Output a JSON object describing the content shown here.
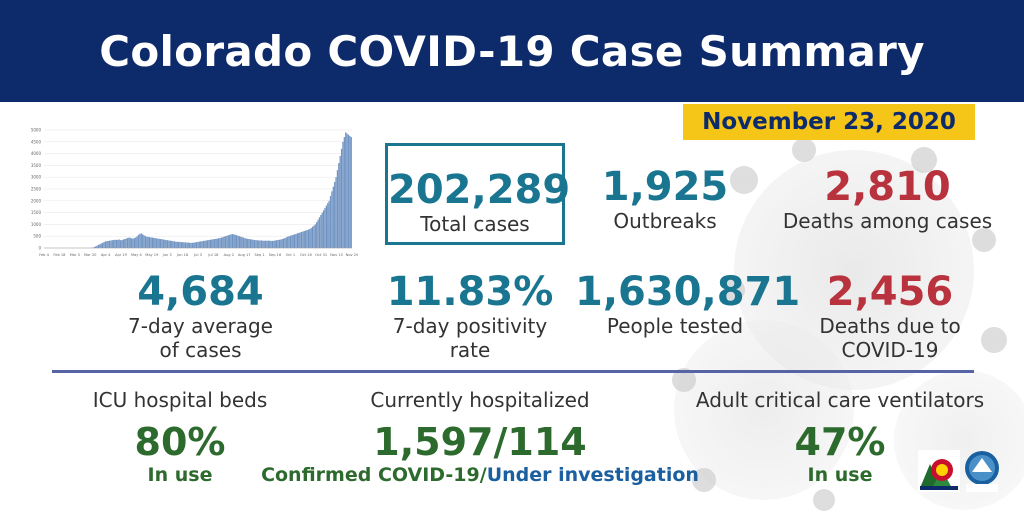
{
  "header": {
    "title": "Colorado COVID-19 Case Summary"
  },
  "date": "November 23, 2020",
  "stats": {
    "total_cases": {
      "value": "202,289",
      "label": "Total cases"
    },
    "outbreaks": {
      "value": "1,925",
      "label": "Outbreaks"
    },
    "deaths_among": {
      "value": "2,810",
      "label": "Deaths among cases"
    },
    "avg_cases": {
      "value": "4,684",
      "label1": "7-day average",
      "label2": "of cases"
    },
    "positivity": {
      "value": "11.83%",
      "label1": "7-day positivity",
      "label2": "rate"
    },
    "tested": {
      "value": "1,630,871",
      "label": "People tested"
    },
    "deaths_due": {
      "value": "2,456",
      "label1": "Deaths due to",
      "label2": "COVID-19"
    }
  },
  "bottom": {
    "icu": {
      "head": "ICU hospital beds",
      "value": "80%",
      "label": "In use"
    },
    "hosp": {
      "head": "Currently hospitalized",
      "value": "1,597/114",
      "label_a": "Confirmed COVID-19/",
      "label_b": "Under investigation"
    },
    "vent": {
      "head": "Adult critical care ventilators",
      "value": "47%",
      "label": "In use"
    }
  },
  "colors": {
    "header": "#0d2a6b",
    "badge": "#f5c518",
    "teal": "#1a7590",
    "red": "#b8333d",
    "green": "#2d6a2d",
    "bar": "#6f93c2"
  },
  "chart_data": {
    "type": "bar",
    "yticks": [
      "0",
      "500",
      "1000",
      "1500",
      "2000",
      "2500",
      "3000",
      "3500",
      "4000",
      "4500",
      "5000"
    ],
    "xticks": [
      "Feb 4",
      "Feb 18",
      "Mar 3",
      "Mar 20",
      "Apr 4",
      "Apr 19",
      "May 4",
      "May 19",
      "Jun 3",
      "Jun 18",
      "Jul 3",
      "Jul 18",
      "Aug 2",
      "Aug 17",
      "Sep 1",
      "Sep 16",
      "Oct 1",
      "Oct 16",
      "Oct 31",
      "Nov 15",
      "Nov 20"
    ],
    "ylim": [
      0,
      5000
    ],
    "values": [
      0,
      0,
      0,
      0,
      0,
      0,
      0,
      0,
      0,
      0,
      0,
      0,
      0,
      0,
      0,
      0,
      0,
      0,
      0,
      0,
      0,
      0,
      0,
      0,
      0,
      0,
      0,
      0,
      0,
      0,
      0,
      0,
      0,
      0,
      5,
      20,
      40,
      70,
      100,
      130,
      160,
      190,
      220,
      250,
      280,
      290,
      300,
      310,
      320,
      330,
      340,
      350,
      340,
      350,
      360,
      330,
      340,
      360,
      380,
      400,
      420,
      440,
      430,
      410,
      400,
      420,
      450,
      500,
      560,
      600,
      620,
      580,
      540,
      500,
      480,
      470,
      460,
      450,
      440,
      430,
      420,
      410,
      400,
      390,
      380,
      370,
      360,
      350,
      340,
      330,
      320,
      310,
      300,
      290,
      280,
      270,
      260,
      260,
      260,
      250,
      250,
      240,
      240,
      230,
      230,
      220,
      220,
      220,
      230,
      240,
      250,
      260,
      270,
      280,
      290,
      300,
      310,
      320,
      330,
      340,
      350,
      360,
      370,
      380,
      390,
      400,
      410,
      420,
      440,
      460,
      480,
      500,
      520,
      540,
      560,
      580,
      590,
      580,
      560,
      540,
      520,
      500,
      480,
      460,
      440,
      420,
      400,
      390,
      380,
      370,
      360,
      350,
      340,
      330,
      330,
      320,
      320,
      320,
      310,
      310,
      310,
      310,
      310,
      310,
      300,
      300,
      310,
      320,
      330,
      340,
      350,
      360,
      380,
      400,
      420,
      450,
      480,
      500,
      520,
      540,
      560,
      580,
      600,
      620,
      640,
      660,
      680,
      700,
      720,
      740,
      760,
      780,
      800,
      850,
      900,
      950,
      1000,
      1100,
      1200,
      1300,
      1400,
      1500,
      1600,
      1700,
      1800,
      1900,
      2000,
      2200,
      2400,
      2600,
      2800,
      3000,
      3300,
      3600,
      3900,
      4200,
      4500,
      4700,
      4900,
      4850,
      4800,
      4750,
      4700
    ]
  }
}
